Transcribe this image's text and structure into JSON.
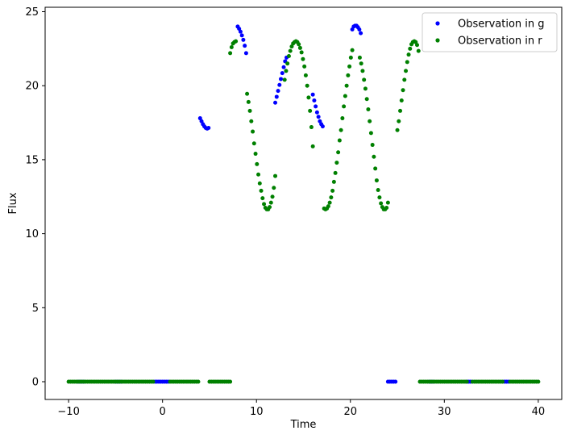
{
  "chart_data": {
    "type": "scatter",
    "title": "",
    "xlabel": "Time",
    "ylabel": "Flux",
    "xlim": [
      -12.5,
      42.5
    ],
    "ylim": [
      -1.2,
      25.3
    ],
    "xticks": [
      -10,
      0,
      10,
      20,
      30,
      40
    ],
    "yticks": [
      0,
      5,
      10,
      15,
      20,
      25
    ],
    "grid": false,
    "legend_position": "top-right",
    "series": [
      {
        "name": "Observation in g",
        "color": "#0000ff",
        "points": [
          [
            -9.0,
            0
          ],
          [
            -8.8,
            0
          ],
          [
            -8.6,
            0
          ],
          [
            -8.4,
            0
          ],
          [
            -5.0,
            0
          ],
          [
            -4.8,
            0
          ],
          [
            -4.6,
            0
          ],
          [
            -4.4,
            0
          ],
          [
            -0.8,
            0
          ],
          [
            -0.6,
            0
          ],
          [
            -0.4,
            0
          ],
          [
            -0.2,
            0
          ],
          [
            0.0,
            0
          ],
          [
            0.2,
            0
          ],
          [
            0.4,
            0
          ],
          [
            0.6,
            0
          ],
          [
            4.0,
            17.8
          ],
          [
            4.15,
            17.6
          ],
          [
            4.3,
            17.4
          ],
          [
            4.45,
            17.25
          ],
          [
            4.6,
            17.15
          ],
          [
            4.75,
            17.1
          ],
          [
            4.9,
            17.15
          ],
          [
            8.0,
            24.0
          ],
          [
            8.15,
            23.85
          ],
          [
            8.3,
            23.65
          ],
          [
            8.45,
            23.4
          ],
          [
            8.6,
            23.1
          ],
          [
            8.75,
            22.7
          ],
          [
            8.9,
            22.2
          ],
          [
            12.0,
            18.85
          ],
          [
            12.15,
            19.25
          ],
          [
            12.3,
            19.65
          ],
          [
            12.45,
            20.05
          ],
          [
            12.6,
            20.45
          ],
          [
            12.75,
            20.85
          ],
          [
            12.9,
            21.25
          ],
          [
            13.05,
            21.65
          ],
          [
            13.2,
            21.9
          ],
          [
            16.0,
            19.4
          ],
          [
            16.15,
            19.0
          ],
          [
            16.3,
            18.6
          ],
          [
            16.45,
            18.2
          ],
          [
            16.6,
            17.9
          ],
          [
            16.75,
            17.6
          ],
          [
            16.9,
            17.4
          ],
          [
            17.05,
            17.25
          ],
          [
            20.2,
            23.8
          ],
          [
            20.35,
            24.0
          ],
          [
            20.5,
            24.05
          ],
          [
            20.65,
            24.05
          ],
          [
            20.8,
            23.95
          ],
          [
            20.95,
            23.8
          ],
          [
            21.1,
            23.55
          ],
          [
            24.0,
            0
          ],
          [
            24.2,
            0
          ],
          [
            24.4,
            0
          ],
          [
            24.6,
            0
          ],
          [
            24.8,
            0
          ],
          [
            28.4,
            0
          ],
          [
            28.6,
            0
          ],
          [
            28.8,
            0
          ],
          [
            32.4,
            0
          ],
          [
            32.6,
            0
          ],
          [
            32.8,
            0
          ],
          [
            36.4,
            0
          ],
          [
            36.6,
            0
          ],
          [
            36.8,
            0
          ]
        ]
      },
      {
        "name": "Observation in r",
        "color": "#008000",
        "points": [
          [
            -10.0,
            0
          ],
          [
            -9.8,
            0
          ],
          [
            -9.6,
            0
          ],
          [
            -9.4,
            0
          ],
          [
            -9.2,
            0
          ],
          [
            -9.0,
            0
          ],
          [
            -8.8,
            0
          ],
          [
            -8.6,
            0
          ],
          [
            -8.4,
            0
          ],
          [
            -8.2,
            0
          ],
          [
            -8.0,
            0
          ],
          [
            -7.8,
            0
          ],
          [
            -7.6,
            0
          ],
          [
            -7.4,
            0
          ],
          [
            -7.2,
            0
          ],
          [
            -7.0,
            0
          ],
          [
            -6.8,
            0
          ],
          [
            -6.6,
            0
          ],
          [
            -6.4,
            0
          ],
          [
            -6.2,
            0
          ],
          [
            -6.0,
            0
          ],
          [
            -5.8,
            0
          ],
          [
            -5.6,
            0
          ],
          [
            -5.4,
            0
          ],
          [
            -5.2,
            0
          ],
          [
            -5.0,
            0
          ],
          [
            -4.8,
            0
          ],
          [
            -4.6,
            0
          ],
          [
            -4.4,
            0
          ],
          [
            -4.2,
            0
          ],
          [
            -4.0,
            0
          ],
          [
            -3.8,
            0
          ],
          [
            -3.6,
            0
          ],
          [
            -3.4,
            0
          ],
          [
            -3.2,
            0
          ],
          [
            -3.0,
            0
          ],
          [
            -2.8,
            0
          ],
          [
            -2.6,
            0
          ],
          [
            -2.4,
            0
          ],
          [
            -2.2,
            0
          ],
          [
            -2.0,
            0
          ],
          [
            -1.8,
            0
          ],
          [
            -1.6,
            0
          ],
          [
            -1.4,
            0
          ],
          [
            -1.2,
            0
          ],
          [
            -1.0,
            0
          ],
          [
            0.8,
            0
          ],
          [
            1.0,
            0
          ],
          [
            1.2,
            0
          ],
          [
            1.4,
            0
          ],
          [
            1.6,
            0
          ],
          [
            1.8,
            0
          ],
          [
            2.0,
            0
          ],
          [
            2.2,
            0
          ],
          [
            2.4,
            0
          ],
          [
            2.6,
            0
          ],
          [
            2.8,
            0
          ],
          [
            3.0,
            0
          ],
          [
            3.2,
            0
          ],
          [
            3.4,
            0
          ],
          [
            3.6,
            0
          ],
          [
            3.8,
            0
          ],
          [
            5.0,
            0
          ],
          [
            5.2,
            0
          ],
          [
            5.4,
            0
          ],
          [
            5.6,
            0
          ],
          [
            5.8,
            0
          ],
          [
            6.0,
            0
          ],
          [
            6.2,
            0
          ],
          [
            6.4,
            0
          ],
          [
            6.6,
            0
          ],
          [
            6.8,
            0
          ],
          [
            7.0,
            0
          ],
          [
            7.2,
            0
          ],
          [
            7.2,
            22.2
          ],
          [
            7.35,
            22.6
          ],
          [
            7.5,
            22.85
          ],
          [
            7.65,
            22.95
          ],
          [
            7.8,
            23.0
          ],
          [
            9.0,
            19.45
          ],
          [
            9.15,
            18.9
          ],
          [
            9.3,
            18.3
          ],
          [
            9.45,
            17.6
          ],
          [
            9.6,
            16.9
          ],
          [
            9.75,
            16.1
          ],
          [
            9.9,
            15.4
          ],
          [
            10.05,
            14.7
          ],
          [
            10.2,
            14.0
          ],
          [
            10.35,
            13.4
          ],
          [
            10.5,
            12.9
          ],
          [
            10.65,
            12.4
          ],
          [
            10.8,
            12.0
          ],
          [
            10.95,
            11.75
          ],
          [
            11.1,
            11.65
          ],
          [
            11.25,
            11.65
          ],
          [
            11.4,
            11.8
          ],
          [
            11.55,
            12.1
          ],
          [
            11.7,
            12.5
          ],
          [
            11.85,
            13.1
          ],
          [
            12.0,
            13.9
          ],
          [
            13.0,
            20.4
          ],
          [
            13.15,
            21.0
          ],
          [
            13.3,
            21.5
          ],
          [
            13.45,
            22.0
          ],
          [
            13.6,
            22.35
          ],
          [
            13.75,
            22.65
          ],
          [
            13.9,
            22.85
          ],
          [
            14.05,
            22.95
          ],
          [
            14.2,
            23.0
          ],
          [
            14.35,
            22.95
          ],
          [
            14.5,
            22.8
          ],
          [
            14.65,
            22.55
          ],
          [
            14.8,
            22.25
          ],
          [
            14.95,
            21.8
          ],
          [
            15.1,
            21.3
          ],
          [
            15.25,
            20.7
          ],
          [
            15.4,
            20.0
          ],
          [
            15.55,
            19.2
          ],
          [
            15.7,
            18.3
          ],
          [
            15.85,
            17.2
          ],
          [
            16.0,
            15.9
          ],
          [
            17.2,
            11.7
          ],
          [
            17.35,
            11.65
          ],
          [
            17.5,
            11.7
          ],
          [
            17.65,
            11.85
          ],
          [
            17.8,
            12.1
          ],
          [
            17.95,
            12.45
          ],
          [
            18.1,
            12.9
          ],
          [
            18.25,
            13.5
          ],
          [
            18.4,
            14.1
          ],
          [
            18.55,
            14.8
          ],
          [
            18.7,
            15.5
          ],
          [
            18.85,
            16.3
          ],
          [
            19.0,
            17.0
          ],
          [
            19.15,
            17.8
          ],
          [
            19.3,
            18.6
          ],
          [
            19.45,
            19.3
          ],
          [
            19.6,
            20.0
          ],
          [
            19.75,
            20.7
          ],
          [
            19.9,
            21.3
          ],
          [
            20.05,
            21.9
          ],
          [
            20.2,
            22.4
          ],
          [
            21.0,
            21.9
          ],
          [
            21.15,
            21.5
          ],
          [
            21.3,
            21.0
          ],
          [
            21.45,
            20.4
          ],
          [
            21.6,
            19.8
          ],
          [
            21.75,
            19.1
          ],
          [
            21.9,
            18.4
          ],
          [
            22.05,
            17.6
          ],
          [
            22.2,
            16.8
          ],
          [
            22.35,
            16.0
          ],
          [
            22.5,
            15.2
          ],
          [
            22.65,
            14.4
          ],
          [
            22.8,
            13.6
          ],
          [
            22.95,
            12.95
          ],
          [
            23.1,
            12.45
          ],
          [
            23.25,
            12.05
          ],
          [
            23.4,
            11.8
          ],
          [
            23.55,
            11.65
          ],
          [
            23.7,
            11.65
          ],
          [
            23.85,
            11.75
          ],
          [
            24.0,
            12.1
          ],
          [
            25.0,
            17.0
          ],
          [
            25.15,
            17.6
          ],
          [
            25.3,
            18.3
          ],
          [
            25.45,
            19.0
          ],
          [
            25.6,
            19.7
          ],
          [
            25.75,
            20.4
          ],
          [
            25.9,
            21.0
          ],
          [
            26.05,
            21.6
          ],
          [
            26.2,
            22.1
          ],
          [
            26.35,
            22.5
          ],
          [
            26.5,
            22.8
          ],
          [
            26.65,
            22.95
          ],
          [
            26.8,
            23.0
          ],
          [
            26.95,
            22.95
          ],
          [
            27.1,
            22.75
          ],
          [
            27.25,
            22.35
          ],
          [
            27.4,
            0
          ],
          [
            27.6,
            0
          ],
          [
            27.8,
            0
          ],
          [
            28.0,
            0
          ],
          [
            28.2,
            0
          ],
          [
            28.4,
            0
          ],
          [
            28.6,
            0
          ],
          [
            28.8,
            0
          ],
          [
            29.0,
            0
          ],
          [
            29.2,
            0
          ],
          [
            29.4,
            0
          ],
          [
            29.6,
            0
          ],
          [
            29.8,
            0
          ],
          [
            30.0,
            0
          ],
          [
            30.2,
            0
          ],
          [
            30.4,
            0
          ],
          [
            30.6,
            0
          ],
          [
            30.8,
            0
          ],
          [
            31.0,
            0
          ],
          [
            31.2,
            0
          ],
          [
            31.4,
            0
          ],
          [
            31.6,
            0
          ],
          [
            31.8,
            0
          ],
          [
            32.0,
            0
          ],
          [
            32.2,
            0
          ],
          [
            32.4,
            0
          ],
          [
            33.0,
            0
          ],
          [
            33.2,
            0
          ],
          [
            33.4,
            0
          ],
          [
            33.6,
            0
          ],
          [
            33.8,
            0
          ],
          [
            34.0,
            0
          ],
          [
            34.2,
            0
          ],
          [
            34.4,
            0
          ],
          [
            34.6,
            0
          ],
          [
            34.8,
            0
          ],
          [
            35.0,
            0
          ],
          [
            35.2,
            0
          ],
          [
            35.4,
            0
          ],
          [
            35.6,
            0
          ],
          [
            35.8,
            0
          ],
          [
            36.0,
            0
          ],
          [
            36.2,
            0
          ],
          [
            37.0,
            0
          ],
          [
            37.2,
            0
          ],
          [
            37.4,
            0
          ],
          [
            37.6,
            0
          ],
          [
            37.8,
            0
          ],
          [
            38.0,
            0
          ],
          [
            38.2,
            0
          ],
          [
            38.4,
            0
          ],
          [
            38.6,
            0
          ],
          [
            38.8,
            0
          ],
          [
            39.0,
            0
          ],
          [
            39.2,
            0
          ],
          [
            39.4,
            0
          ],
          [
            39.6,
            0
          ],
          [
            39.8,
            0
          ],
          [
            40.0,
            0
          ]
        ]
      }
    ]
  }
}
